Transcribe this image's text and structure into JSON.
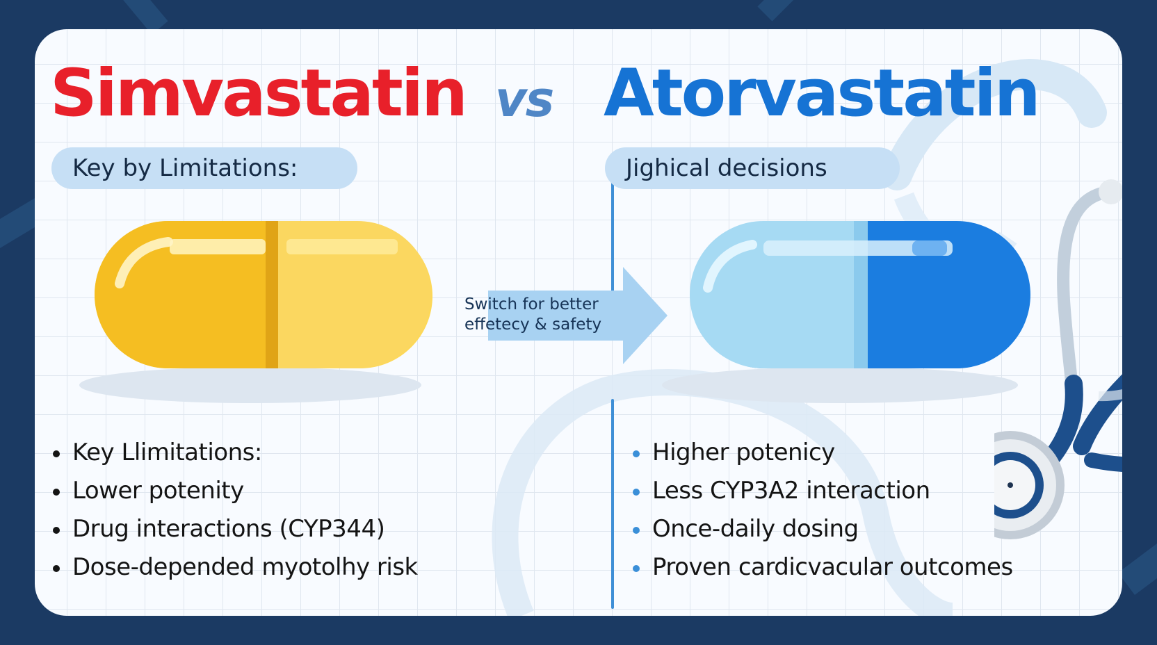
{
  "title_left": "Simvastatin",
  "vs_label": "vs",
  "title_right": "Atorvastatin",
  "left_pill_label": "Key by Limitations:",
  "right_pill_label": "Jighical decisions",
  "arrow_text": [
    "Switch for better",
    "effetecy & safety"
  ],
  "left_bullets": [
    "Key Llimitations:",
    "Lower potenity",
    "Drug interactions (CYP344)",
    "Dose-depended myotolhy risk"
  ],
  "right_bullets": [
    "Higher potenicy",
    "Less CYP3A2 interaction",
    "Once-daily dosing",
    "Proven cardicvacular outcomes"
  ],
  "colors": {
    "background": "#1b3a63",
    "title_left": "#e8202a",
    "title_right": "#1673d4",
    "vs": "#4f86c6",
    "capsule_yellow": "#f5c12b",
    "capsule_blue": "#1b7de0",
    "capsule_light_blue": "#a6daf3",
    "arrow": "#a8d2f2"
  },
  "icons": [
    "yellow-capsule-icon",
    "blue-capsule-icon",
    "right-arrow-icon",
    "stethoscope-icon"
  ]
}
